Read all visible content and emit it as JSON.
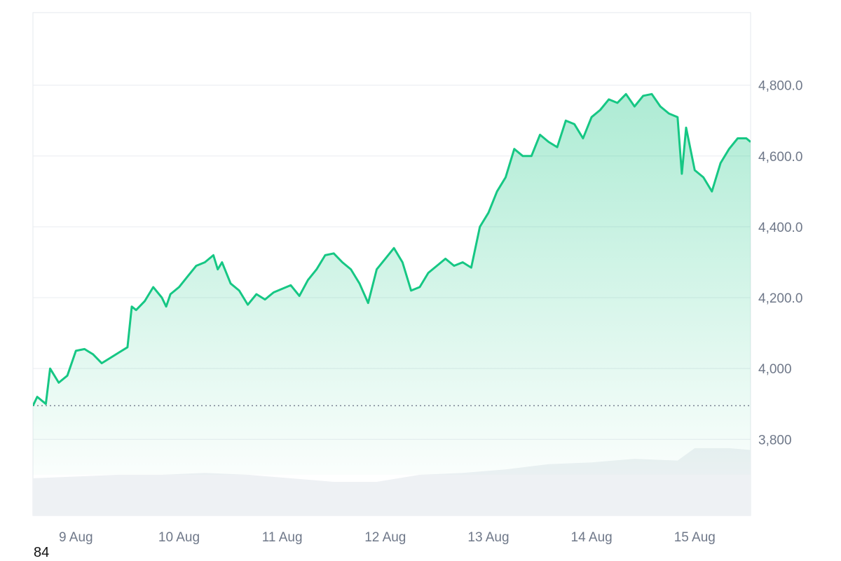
{
  "chart_data": {
    "type": "area",
    "title": "",
    "xlabel": "",
    "ylabel": "",
    "x_ticks": [
      "9 Aug",
      "10 Aug",
      "11 Aug",
      "12 Aug",
      "13 Aug",
      "14 Aug",
      "15 Aug"
    ],
    "y_ticks": [
      "3,800",
      "4,000",
      "4,200.0",
      "4,400.0",
      "4,600.0",
      "4,800.0"
    ],
    "y_tick_values": [
      3800,
      4000,
      4200,
      4400,
      4600,
      4800
    ],
    "ylim": [
      3585,
      5005
    ],
    "xlim": [
      "8 Aug 14:00",
      "15 Aug 13:00"
    ],
    "baseline": 3895,
    "grid": true,
    "line_color": "#16c784",
    "volume_color": "#eef1f4",
    "price_series": {
      "name": "",
      "x": [
        "8 Aug 14:00",
        "8 Aug 15:00",
        "8 Aug 17:00",
        "8 Aug 18:00",
        "8 Aug 20:00",
        "8 Aug 22:00",
        "9 Aug 00:00",
        "9 Aug 02:00",
        "9 Aug 04:00",
        "9 Aug 06:00",
        "9 Aug 08:00",
        "9 Aug 10:00",
        "9 Aug 12:00",
        "9 Aug 13:00",
        "9 Aug 14:00",
        "9 Aug 16:00",
        "9 Aug 18:00",
        "9 Aug 20:00",
        "9 Aug 21:00",
        "9 Aug 22:00",
        "10 Aug 00:00",
        "10 Aug 02:00",
        "10 Aug 04:00",
        "10 Aug 06:00",
        "10 Aug 08:00",
        "10 Aug 09:00",
        "10 Aug 10:00",
        "10 Aug 12:00",
        "10 Aug 14:00",
        "10 Aug 16:00",
        "10 Aug 18:00",
        "10 Aug 20:00",
        "10 Aug 22:00",
        "11 Aug 00:00",
        "11 Aug 02:00",
        "11 Aug 04:00",
        "11 Aug 06:00",
        "11 Aug 08:00",
        "11 Aug 10:00",
        "11 Aug 12:00",
        "11 Aug 14:00",
        "11 Aug 16:00",
        "11 Aug 18:00",
        "11 Aug 20:00",
        "11 Aug 22:00",
        "12 Aug 00:00",
        "12 Aug 02:00",
        "12 Aug 04:00",
        "12 Aug 06:00",
        "12 Aug 08:00",
        "12 Aug 10:00",
        "12 Aug 12:00",
        "12 Aug 14:00",
        "12 Aug 16:00",
        "12 Aug 18:00",
        "12 Aug 20:00",
        "12 Aug 22:00",
        "13 Aug 00:00",
        "13 Aug 02:00",
        "13 Aug 04:00",
        "13 Aug 06:00",
        "13 Aug 08:00",
        "13 Aug 10:00",
        "13 Aug 12:00",
        "13 Aug 14:00",
        "13 Aug 16:00",
        "13 Aug 18:00",
        "13 Aug 20:00",
        "13 Aug 22:00",
        "14 Aug 00:00",
        "14 Aug 02:00",
        "14 Aug 04:00",
        "14 Aug 06:00",
        "14 Aug 08:00",
        "14 Aug 10:00",
        "14 Aug 12:00",
        "14 Aug 14:00",
        "14 Aug 16:00",
        "14 Aug 18:00",
        "14 Aug 20:00",
        "14 Aug 21:00",
        "14 Aug 22:00",
        "15 Aug 00:00",
        "15 Aug 02:00",
        "15 Aug 04:00",
        "15 Aug 06:00",
        "15 Aug 08:00",
        "15 Aug 10:00",
        "15 Aug 12:00",
        "15 Aug 13:00"
      ],
      "y": [
        3895,
        3920,
        3900,
        4000,
        3960,
        3980,
        4050,
        4055,
        4040,
        4015,
        4030,
        4045,
        4060,
        4175,
        4165,
        4190,
        4230,
        4200,
        4175,
        4210,
        4230,
        4260,
        4290,
        4300,
        4320,
        4280,
        4300,
        4240,
        4220,
        4180,
        4210,
        4195,
        4215,
        4225,
        4235,
        4205,
        4250,
        4280,
        4320,
        4325,
        4300,
        4280,
        4240,
        4185,
        4280,
        4310,
        4340,
        4300,
        4220,
        4230,
        4270,
        4290,
        4310,
        4290,
        4300,
        4285,
        4400,
        4440,
        4500,
        4540,
        4620,
        4600,
        4600,
        4660,
        4640,
        4625,
        4700,
        4690,
        4650,
        4710,
        4730,
        4760,
        4750,
        4775,
        4740,
        4770,
        4775,
        4740,
        4720,
        4710,
        4550,
        4680,
        4560,
        4540,
        4500,
        4580,
        4620,
        4650,
        4650,
        4640
      ]
    },
    "volume_series": {
      "name": "",
      "x": [
        "8 Aug 14:00",
        "9 Aug 00:00",
        "9 Aug 10:00",
        "9 Aug 20:00",
        "10 Aug 06:00",
        "10 Aug 16:00",
        "11 Aug 02:00",
        "11 Aug 12:00",
        "11 Aug 22:00",
        "12 Aug 08:00",
        "12 Aug 18:00",
        "13 Aug 04:00",
        "13 Aug 14:00",
        "14 Aug 00:00",
        "14 Aug 10:00",
        "14 Aug 20:00",
        "15 Aug 00:00",
        "15 Aug 08:00",
        "15 Aug 13:00"
      ],
      "y": [
        3690,
        3695,
        3700,
        3700,
        3705,
        3700,
        3690,
        3680,
        3680,
        3700,
        3705,
        3715,
        3730,
        3735,
        3745,
        3740,
        3775,
        3775,
        3770
      ]
    }
  },
  "footer": {
    "number": "84"
  }
}
